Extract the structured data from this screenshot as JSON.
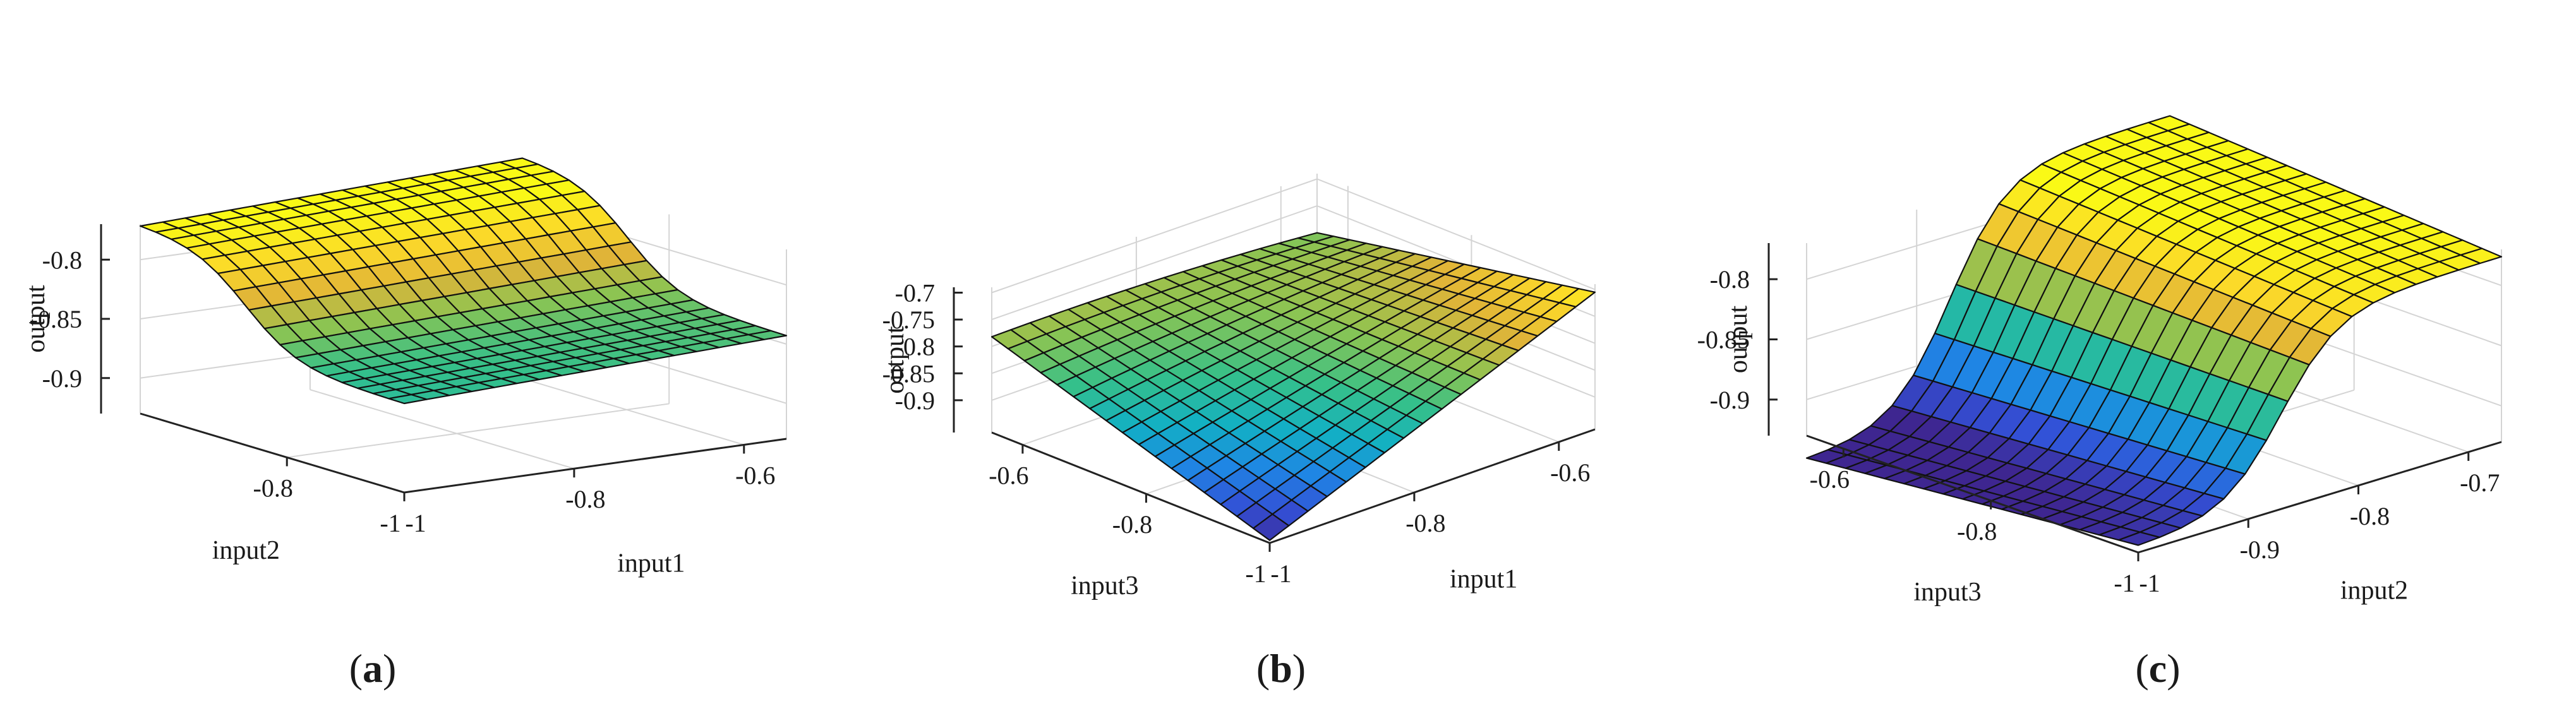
{
  "palette": [
    "#3e2690",
    "#3350d6",
    "#1f86e4",
    "#12b0c4",
    "#35c08a",
    "#8cc452",
    "#e0b438",
    "#fbd82a",
    "#faf916"
  ],
  "edge_color": "#111111",
  "chart_data": [
    {
      "type": "surface",
      "caption_prefix": "(",
      "caption_letter": "a",
      "caption_suffix": ")",
      "xlabel": "input1",
      "ylabel": "input2",
      "zlabel": "output",
      "xlim": [
        -1,
        -0.55
      ],
      "ylim": [
        -1,
        -0.55
      ],
      "zlim": [
        -0.93,
        -0.77
      ],
      "x_ticks": [
        "-1",
        "-0.8",
        "-0.6"
      ],
      "x_tick_values": [
        -1,
        -0.8,
        -0.6
      ],
      "y_ticks": [
        "-1",
        "-0.8"
      ],
      "y_tick_values": [
        -1,
        -0.8
      ],
      "z_ticks": [
        "-0.8",
        "-0.85",
        "-0.9"
      ],
      "z_tick_values": [
        -0.8,
        -0.85,
        -0.9
      ],
      "surface": {
        "shape": "sigmoid",
        "base": -0.855,
        "amp": 0.085,
        "center": -0.73,
        "slope": 22,
        "cross": 0.012
      },
      "grid": "on"
    },
    {
      "type": "surface",
      "caption_prefix": "(",
      "caption_letter": "b",
      "caption_suffix": ")",
      "xlabel": "input1",
      "ylabel": "input3",
      "zlabel": "output",
      "xlim": [
        -1,
        -0.55
      ],
      "ylim": [
        -1,
        -0.55
      ],
      "zlim": [
        -0.96,
        -0.69
      ],
      "x_ticks": [
        "-1",
        "-0.8",
        "-0.6"
      ],
      "x_tick_values": [
        -1,
        -0.8,
        -0.6
      ],
      "y_ticks": [
        "-1",
        "-0.8",
        "-0.6"
      ],
      "y_tick_values": [
        -1,
        -0.8,
        -0.6
      ],
      "z_ticks": [
        "-0.7",
        "-0.75",
        "-0.8",
        "-0.85",
        "-0.9"
      ],
      "z_tick_values": [
        -0.7,
        -0.75,
        -0.8,
        -0.85,
        -0.9
      ],
      "surface": {
        "shape": "saddle",
        "corner_front": -0.955,
        "corner_right": -0.705,
        "corner_left": -0.782,
        "corner_back": -0.8
      },
      "grid": "on"
    },
    {
      "type": "surface",
      "caption_prefix": "(",
      "caption_letter": "c",
      "caption_suffix": ")",
      "xlabel": "input2",
      "ylabel": "input3",
      "zlabel": "output",
      "xlim": [
        -1,
        -0.67
      ],
      "ylim": [
        -1,
        -0.55
      ],
      "zlim": [
        -0.93,
        -0.77
      ],
      "x_ticks": [
        "-1",
        "-0.9",
        "-0.8",
        "-0.7"
      ],
      "x_tick_values": [
        -1,
        -0.9,
        -0.8,
        -0.7
      ],
      "y_ticks": [
        "-1",
        "-0.8",
        "-0.6"
      ],
      "y_tick_values": [
        -1,
        -0.8,
        -0.6
      ],
      "z_ticks": [
        "-0.8",
        "-0.85",
        "-0.9"
      ],
      "z_tick_values": [
        -0.8,
        -0.85,
        -0.9
      ],
      "surface": {
        "shape": "ramp",
        "low": -0.925,
        "high": -0.776,
        "center": -0.87,
        "slope": 38,
        "yeffect": 0.045
      },
      "grid": "on"
    }
  ]
}
